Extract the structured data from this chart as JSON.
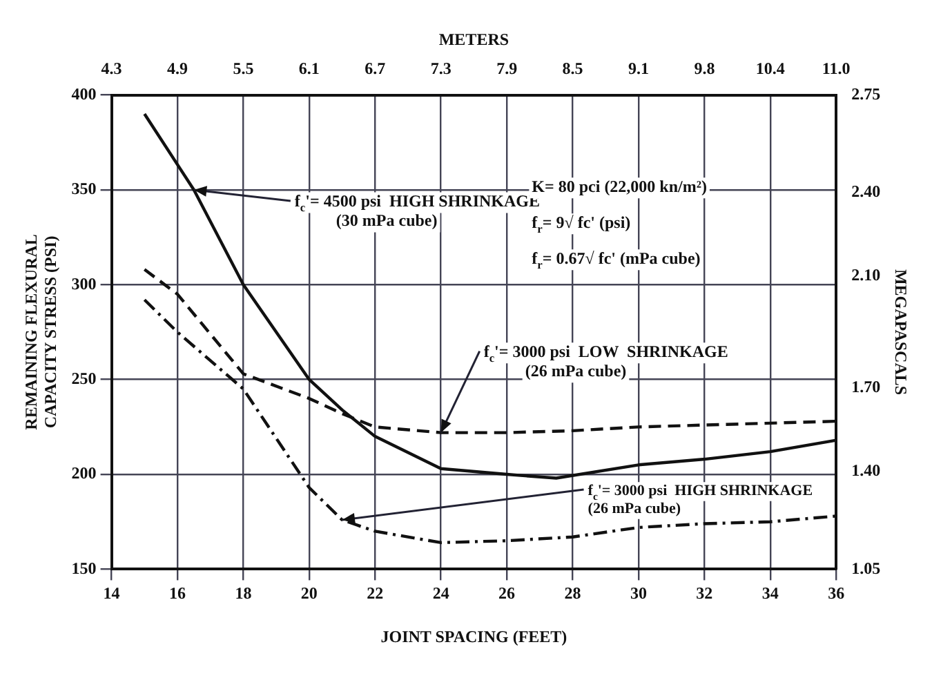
{
  "chart_data": {
    "type": "line",
    "xlabel": "JOINT SPACING (FEET)",
    "ylabel": "REMAINING FLEXURAL\nCAPACITY STRESS (PSI)",
    "y2label": "MEGAPASCALS",
    "x2label": "METERS",
    "xlim": [
      14,
      36
    ],
    "xticks": [
      14,
      16,
      18,
      20,
      22,
      24,
      26,
      28,
      30,
      32,
      34,
      36
    ],
    "ylim": [
      150,
      400
    ],
    "yticks": [
      150,
      200,
      250,
      300,
      350,
      400
    ],
    "y2lim": [
      1.05,
      2.75
    ],
    "y2ticks": [
      1.05,
      {
        "value": 1.4,
        "label": "1.40"
      },
      {
        "value": 1.7,
        "label": "1.70"
      },
      {
        "value": 2.1,
        "label": "2.10"
      },
      {
        "value": 2.4,
        "label": "2.40"
      },
      2.75
    ],
    "x2lim": [
      4.267,
      10.973
    ],
    "x2ticks": [
      {
        "value": 4.267,
        "label": "4.3"
      },
      {
        "value": 4.877,
        "label": "4.9"
      },
      {
        "value": 5.486,
        "label": "5.5"
      },
      {
        "value": 6.096,
        "label": "6.1"
      },
      {
        "value": 6.706,
        "label": "6.7"
      },
      {
        "value": 7.315,
        "label": "7.3"
      },
      {
        "value": 7.925,
        "label": "7.9"
      },
      {
        "value": 8.534,
        "label": "8.5"
      },
      {
        "value": 9.144,
        "label": "9.1"
      },
      {
        "value": 9.754,
        "label": "9.8"
      },
      {
        "value": 10.363,
        "label": "10.4"
      },
      {
        "value": 10.973,
        "label": "11.0"
      }
    ],
    "grid": true,
    "legend": false,
    "marker": "none",
    "series": [
      {
        "color": "#111111",
        "line_style": "solid",
        "x": [
          15,
          16.5,
          18,
          20,
          21,
          22,
          24,
          26,
          27.5,
          30,
          32,
          34,
          36
        ],
        "values": [
          390,
          350,
          300,
          250,
          234,
          220,
          203,
          200,
          198,
          205,
          208,
          212,
          218
        ]
      },
      {
        "color": "#111111",
        "line_style": "dashed",
        "x": [
          15,
          16,
          18,
          20,
          21,
          22,
          24,
          26,
          28,
          30,
          32,
          34,
          36
        ],
        "values": [
          308,
          295,
          253,
          240,
          232,
          225,
          222,
          222,
          223,
          225,
          226,
          227,
          228
        ]
      },
      {
        "color": "#111111",
        "line_style": "dotted",
        "x": [
          15,
          16,
          18,
          20,
          21,
          22,
          24,
          26,
          28,
          30,
          32,
          34,
          36
        ],
        "values": [
          292,
          275,
          245,
          193,
          176,
          170,
          164,
          165,
          167,
          172,
          174,
          175,
          178
        ]
      }
    ],
    "annotations": [
      {
        "text": "f$_{c}$'= 4500 psi  HIGH SHRINKAGE\n(30 mPa cube)",
        "x": 16.5,
        "y": 350
      },
      {
        "text": "f$_{c}$'= 3000 psi  LOW  SHRINKAGE\n(26 mPa cube)",
        "x": 24,
        "y": 222
      },
      {
        "text": "f$_{c}$'= 3000 psi  HIGH SHRINKAGE\n(26 mPa cube)",
        "x": 21,
        "y": 176
      },
      "K= 80 pci (22,000 kn/m²)",
      "f$_{r}$= 9√ fc' (psi)",
      "f$_{r}$= 0.67√ fc' (mPa cube)"
    ]
  }
}
